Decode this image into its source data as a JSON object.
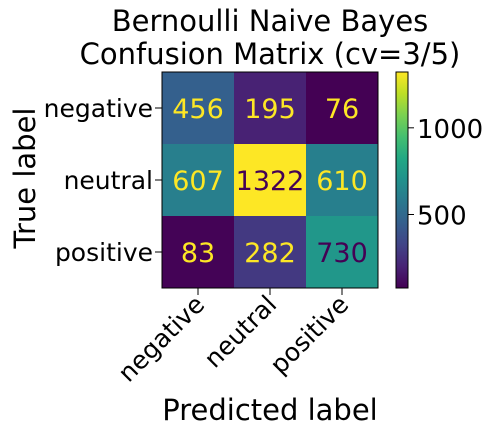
{
  "chart_data": {
    "type": "heatmap",
    "title": [
      "Bernoulli Naive Bayes",
      "Confusion Matrix (cv=3/5)"
    ],
    "xlabel": "Predicted label",
    "ylabel": "True label",
    "x_categories": [
      "negative",
      "neutral",
      "positive"
    ],
    "y_categories": [
      "negative",
      "neutral",
      "positive"
    ],
    "values": [
      [
        456,
        195,
        76
      ],
      [
        607,
        1322,
        610
      ],
      [
        83,
        282,
        730
      ]
    ],
    "colormap": "viridis",
    "colorbar": {
      "ticks": [
        500,
        1000
      ],
      "range": [
        76,
        1322
      ]
    },
    "text_colors": {
      "on_dark": "#fde725",
      "on_light": "#440154"
    }
  }
}
